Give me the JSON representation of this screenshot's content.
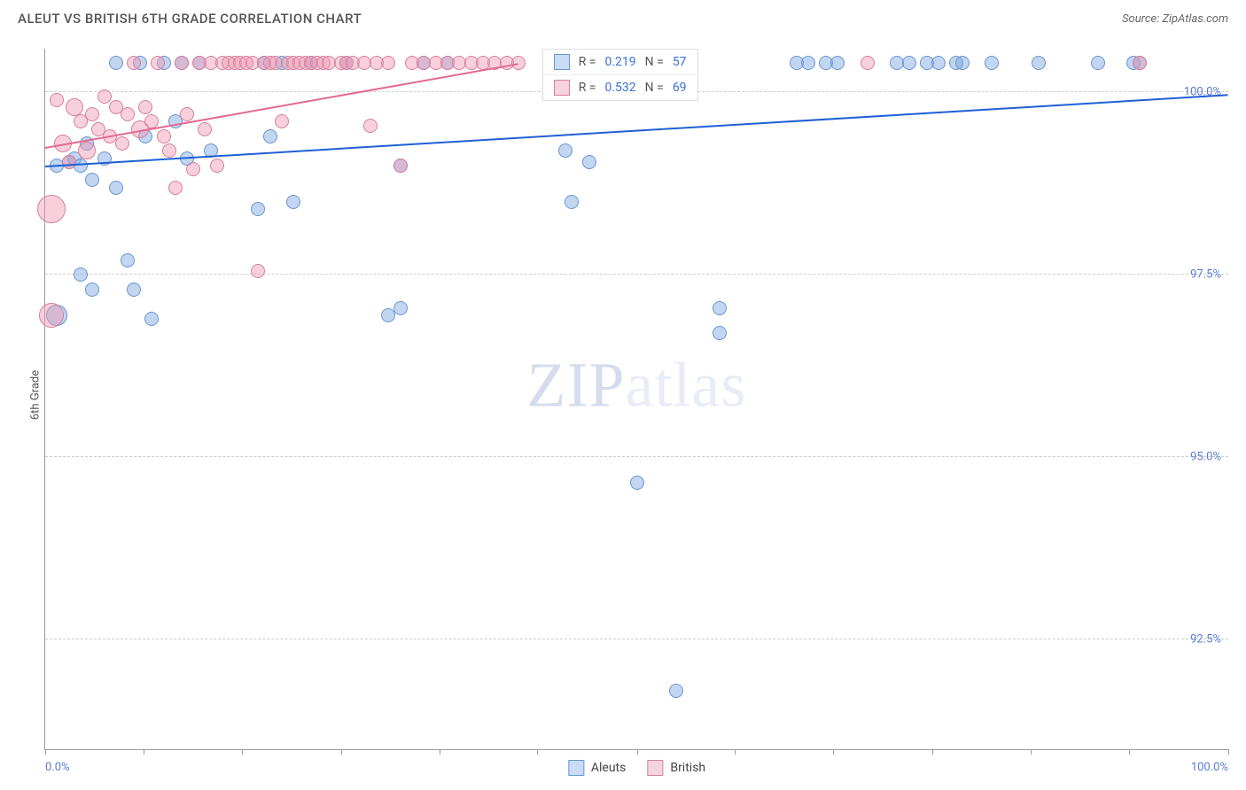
{
  "header": {
    "title": "ALEUT VS BRITISH 6TH GRADE CORRELATION CHART",
    "source_prefix": "Source: ",
    "source_name": "ZipAtlas.com"
  },
  "yaxis": {
    "label": "6th Grade"
  },
  "watermark": {
    "zip": "ZIP",
    "atlas": "atlas"
  },
  "chart": {
    "type": "scatter",
    "xlim": [
      0,
      100
    ],
    "ylim": [
      91.0,
      100.6
    ],
    "x_ticks": [
      0,
      8.3,
      16.6,
      25,
      33.3,
      41.6,
      50,
      58.3,
      66.6,
      75,
      83.3,
      91.6,
      100
    ],
    "x_tick_labels": {
      "0": "0.0%",
      "100": "100.0%"
    },
    "y_gridlines": [
      92.5,
      95.0,
      97.5,
      100.0
    ],
    "y_tick_labels": {
      "92.5": "92.5%",
      "95.0": "95.0%",
      "97.5": "97.5%",
      "100.0": "100.0%"
    },
    "background_color": "#ffffff",
    "grid_color": "#cccccc",
    "axis_color": "#999999",
    "tick_label_color": "#5b7bd5",
    "series": [
      {
        "name": "Aleuts",
        "fill": "rgba(120,165,225,0.45)",
        "stroke": "#6a93cf",
        "swatch_fill": "#c9ddf6",
        "swatch_stroke": "#6a93cf",
        "trend_color": "#1f5fd6",
        "trend": {
          "x1": 0,
          "y1": 99.0,
          "x2": 100,
          "y2": 99.98
        },
        "stats": {
          "R": "0.219",
          "N": "57"
        },
        "points": [
          {
            "x": 1,
            "y": 96.95,
            "r": 12
          },
          {
            "x": 1,
            "y": 99.0,
            "r": 8
          },
          {
            "x": 2,
            "y": 99.05,
            "r": 8
          },
          {
            "x": 2.5,
            "y": 99.1,
            "r": 8
          },
          {
            "x": 3,
            "y": 99.0,
            "r": 8
          },
          {
            "x": 3,
            "y": 97.5,
            "r": 8
          },
          {
            "x": 3.5,
            "y": 99.3,
            "r": 8
          },
          {
            "x": 4,
            "y": 98.8,
            "r": 8
          },
          {
            "x": 4,
            "y": 97.3,
            "r": 8
          },
          {
            "x": 5,
            "y": 99.1,
            "r": 8
          },
          {
            "x": 6,
            "y": 98.7,
            "r": 8
          },
          {
            "x": 6,
            "y": 100.4,
            "r": 8
          },
          {
            "x": 7,
            "y": 97.7,
            "r": 8
          },
          {
            "x": 7.5,
            "y": 97.3,
            "r": 8
          },
          {
            "x": 8,
            "y": 100.4,
            "r": 8
          },
          {
            "x": 8.5,
            "y": 99.4,
            "r": 8
          },
          {
            "x": 9,
            "y": 96.9,
            "r": 8
          },
          {
            "x": 10,
            "y": 100.4,
            "r": 8
          },
          {
            "x": 11,
            "y": 99.6,
            "r": 8
          },
          {
            "x": 11.5,
            "y": 100.4,
            "r": 8
          },
          {
            "x": 12,
            "y": 99.1,
            "r": 8
          },
          {
            "x": 13,
            "y": 100.4,
            "r": 8
          },
          {
            "x": 14,
            "y": 99.2,
            "r": 8
          },
          {
            "x": 18,
            "y": 98.4,
            "r": 8
          },
          {
            "x": 18.5,
            "y": 100.4,
            "r": 8
          },
          {
            "x": 19,
            "y": 99.4,
            "r": 8
          },
          {
            "x": 20,
            "y": 100.4,
            "r": 8
          },
          {
            "x": 21,
            "y": 98.5,
            "r": 8
          },
          {
            "x": 22.5,
            "y": 100.4,
            "r": 8
          },
          {
            "x": 25.5,
            "y": 100.4,
            "r": 8
          },
          {
            "x": 29,
            "y": 96.95,
            "r": 8
          },
          {
            "x": 30,
            "y": 97.05,
            "r": 8
          },
          {
            "x": 30,
            "y": 99.0,
            "r": 8
          },
          {
            "x": 32,
            "y": 100.4,
            "r": 8
          },
          {
            "x": 34,
            "y": 100.4,
            "r": 8
          },
          {
            "x": 44,
            "y": 99.2,
            "r": 8
          },
          {
            "x": 44.5,
            "y": 98.5,
            "r": 8
          },
          {
            "x": 46,
            "y": 99.05,
            "r": 8
          },
          {
            "x": 50,
            "y": 94.65,
            "r": 8
          },
          {
            "x": 53.3,
            "y": 91.8,
            "r": 8
          },
          {
            "x": 57,
            "y": 97.05,
            "r": 8
          },
          {
            "x": 57,
            "y": 96.7,
            "r": 8
          },
          {
            "x": 63.5,
            "y": 100.4,
            "r": 8
          },
          {
            "x": 64.5,
            "y": 100.4,
            "r": 8
          },
          {
            "x": 66,
            "y": 100.4,
            "r": 8
          },
          {
            "x": 67,
            "y": 100.4,
            "r": 8
          },
          {
            "x": 72,
            "y": 100.4,
            "r": 8
          },
          {
            "x": 73,
            "y": 100.4,
            "r": 8
          },
          {
            "x": 74.5,
            "y": 100.4,
            "r": 8
          },
          {
            "x": 75.5,
            "y": 100.4,
            "r": 8
          },
          {
            "x": 77,
            "y": 100.4,
            "r": 8
          },
          {
            "x": 77.5,
            "y": 100.4,
            "r": 8
          },
          {
            "x": 80,
            "y": 100.4,
            "r": 8
          },
          {
            "x": 84,
            "y": 100.4,
            "r": 8
          },
          {
            "x": 89,
            "y": 100.4,
            "r": 8
          },
          {
            "x": 92,
            "y": 100.4,
            "r": 8
          },
          {
            "x": 92.5,
            "y": 100.4,
            "r": 8
          }
        ]
      },
      {
        "name": "British",
        "fill": "rgba(240,150,175,0.45)",
        "stroke": "#d77f9b",
        "swatch_fill": "#f6d4de",
        "swatch_stroke": "#d77f9b",
        "trend_color": "#e26a8f",
        "trend": {
          "x1": 0,
          "y1": 99.25,
          "x2": 40,
          "y2": 100.4
        },
        "stats": {
          "R": "0.532",
          "N": "69"
        },
        "points": [
          {
            "x": 0.5,
            "y": 96.95,
            "r": 14
          },
          {
            "x": 0.5,
            "y": 98.4,
            "r": 16
          },
          {
            "x": 1,
            "y": 99.9,
            "r": 8
          },
          {
            "x": 1.5,
            "y": 99.3,
            "r": 10
          },
          {
            "x": 2,
            "y": 99.05,
            "r": 8
          },
          {
            "x": 2.5,
            "y": 99.8,
            "r": 10
          },
          {
            "x": 3,
            "y": 99.6,
            "r": 8
          },
          {
            "x": 3.5,
            "y": 99.2,
            "r": 10
          },
          {
            "x": 4,
            "y": 99.7,
            "r": 8
          },
          {
            "x": 4.5,
            "y": 99.5,
            "r": 8
          },
          {
            "x": 5,
            "y": 99.95,
            "r": 8
          },
          {
            "x": 5.5,
            "y": 99.4,
            "r": 8
          },
          {
            "x": 6,
            "y": 99.8,
            "r": 8
          },
          {
            "x": 6.5,
            "y": 99.3,
            "r": 8
          },
          {
            "x": 7,
            "y": 99.7,
            "r": 8
          },
          {
            "x": 7.5,
            "y": 100.4,
            "r": 8
          },
          {
            "x": 8,
            "y": 99.5,
            "r": 10
          },
          {
            "x": 8.5,
            "y": 99.8,
            "r": 8
          },
          {
            "x": 9,
            "y": 99.6,
            "r": 8
          },
          {
            "x": 9.5,
            "y": 100.4,
            "r": 8
          },
          {
            "x": 10,
            "y": 99.4,
            "r": 8
          },
          {
            "x": 10.5,
            "y": 99.2,
            "r": 8
          },
          {
            "x": 11,
            "y": 98.7,
            "r": 8
          },
          {
            "x": 11.5,
            "y": 100.4,
            "r": 8
          },
          {
            "x": 12,
            "y": 99.7,
            "r": 8
          },
          {
            "x": 12.5,
            "y": 98.95,
            "r": 8
          },
          {
            "x": 13,
            "y": 100.4,
            "r": 8
          },
          {
            "x": 13.5,
            "y": 99.5,
            "r": 8
          },
          {
            "x": 14,
            "y": 100.4,
            "r": 8
          },
          {
            "x": 14.5,
            "y": 99.0,
            "r": 8
          },
          {
            "x": 15,
            "y": 100.4,
            "r": 8
          },
          {
            "x": 15.5,
            "y": 100.4,
            "r": 8
          },
          {
            "x": 16,
            "y": 100.4,
            "r": 8
          },
          {
            "x": 16.5,
            "y": 100.4,
            "r": 8
          },
          {
            "x": 17,
            "y": 100.4,
            "r": 8
          },
          {
            "x": 17.5,
            "y": 100.4,
            "r": 8
          },
          {
            "x": 18,
            "y": 97.55,
            "r": 8
          },
          {
            "x": 18.5,
            "y": 100.4,
            "r": 8
          },
          {
            "x": 19,
            "y": 100.4,
            "r": 8
          },
          {
            "x": 19.5,
            "y": 100.4,
            "r": 8
          },
          {
            "x": 20,
            "y": 99.6,
            "r": 8
          },
          {
            "x": 20.5,
            "y": 100.4,
            "r": 8
          },
          {
            "x": 21,
            "y": 100.4,
            "r": 8
          },
          {
            "x": 21.5,
            "y": 100.4,
            "r": 8
          },
          {
            "x": 22,
            "y": 100.4,
            "r": 8
          },
          {
            "x": 22.5,
            "y": 100.4,
            "r": 8
          },
          {
            "x": 23,
            "y": 100.4,
            "r": 8
          },
          {
            "x": 23.5,
            "y": 100.4,
            "r": 8
          },
          {
            "x": 24,
            "y": 100.4,
            "r": 8
          },
          {
            "x": 25,
            "y": 100.4,
            "r": 8
          },
          {
            "x": 25.5,
            "y": 100.4,
            "r": 8
          },
          {
            "x": 26,
            "y": 100.4,
            "r": 8
          },
          {
            "x": 27,
            "y": 100.4,
            "r": 8
          },
          {
            "x": 27.5,
            "y": 99.55,
            "r": 8
          },
          {
            "x": 28,
            "y": 100.4,
            "r": 8
          },
          {
            "x": 29,
            "y": 100.4,
            "r": 8
          },
          {
            "x": 30,
            "y": 99.0,
            "r": 8
          },
          {
            "x": 31,
            "y": 100.4,
            "r": 8
          },
          {
            "x": 32,
            "y": 100.4,
            "r": 8
          },
          {
            "x": 33,
            "y": 100.4,
            "r": 8
          },
          {
            "x": 34,
            "y": 100.4,
            "r": 8
          },
          {
            "x": 35,
            "y": 100.4,
            "r": 8
          },
          {
            "x": 36,
            "y": 100.4,
            "r": 8
          },
          {
            "x": 37,
            "y": 100.4,
            "r": 8
          },
          {
            "x": 38,
            "y": 100.4,
            "r": 8
          },
          {
            "x": 39,
            "y": 100.4,
            "r": 8
          },
          {
            "x": 40,
            "y": 100.4,
            "r": 8
          },
          {
            "x": 69.5,
            "y": 100.4,
            "r": 8
          },
          {
            "x": 92.5,
            "y": 100.4,
            "r": 8
          }
        ]
      }
    ],
    "legend_bottom": [
      {
        "label": "Aleuts",
        "series": 0
      },
      {
        "label": "British",
        "series": 1
      }
    ],
    "stat_labels": {
      "R": "R =",
      "N": "N ="
    }
  }
}
